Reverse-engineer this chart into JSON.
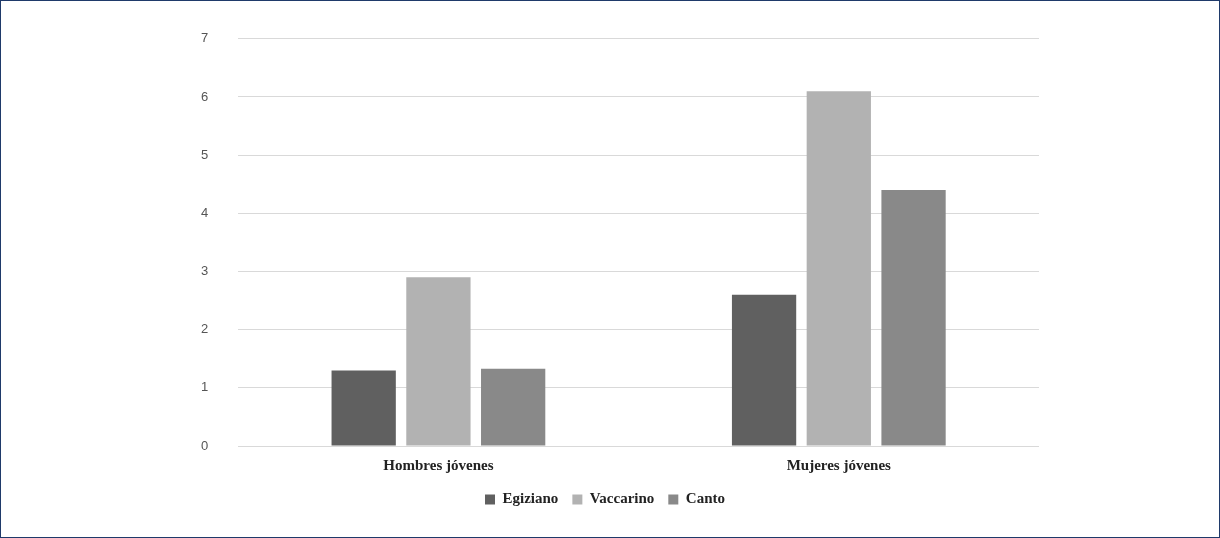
{
  "chart_data": {
    "type": "bar",
    "categories": [
      "Hombres jóvenes",
      "Mujeres jóvenes"
    ],
    "series": [
      {
        "name": "Egiziano",
        "color": "#606060",
        "values": [
          1.3,
          2.6
        ]
      },
      {
        "name": "Vaccarino",
        "color": "#b2b2b2",
        "values": [
          2.9,
          6.1
        ]
      },
      {
        "name": "Canto",
        "color": "#898989",
        "values": [
          1.33,
          4.4
        ]
      }
    ],
    "ylim": [
      0,
      7
    ],
    "yticks": [
      0,
      1,
      2,
      3,
      4,
      5,
      6,
      7
    ],
    "grid": "y",
    "legend": "bottom"
  }
}
